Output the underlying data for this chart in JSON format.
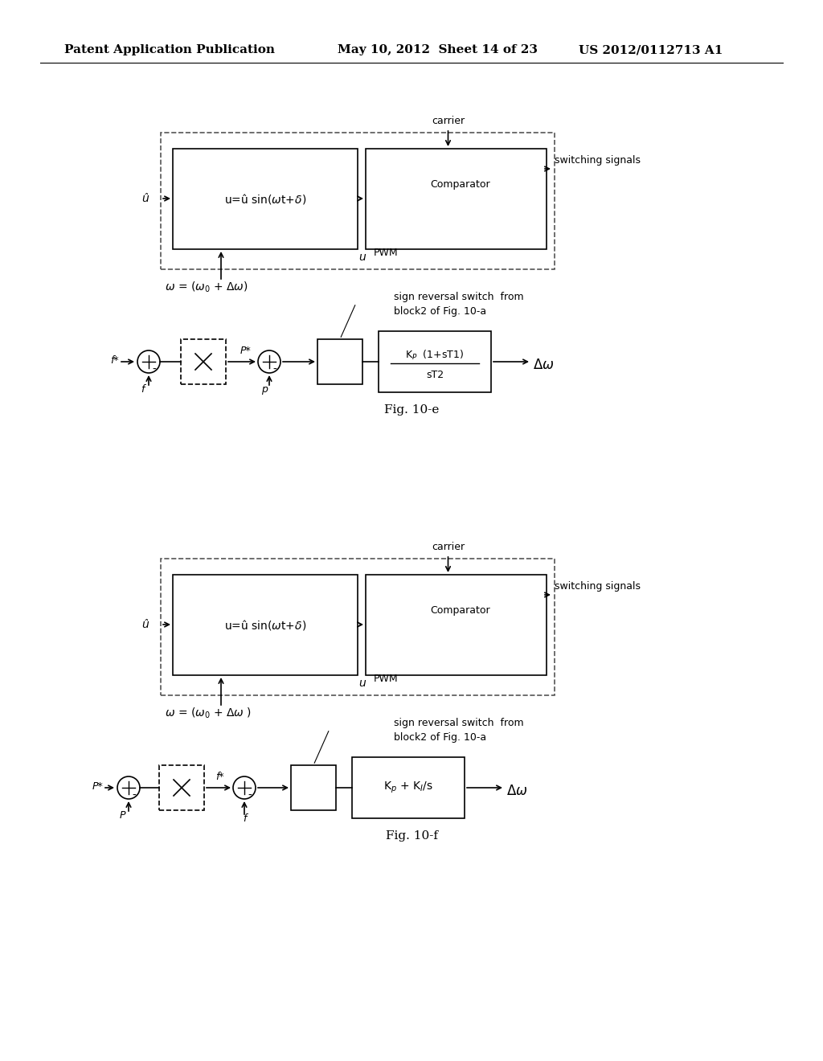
{
  "background_color": "#ffffff",
  "header_left": "Patent Application Publication",
  "header_mid": "May 10, 2012  Sheet 14 of 23",
  "header_right": "US 2012/0112713 A1",
  "fig_e_label": "Fig. 10-e",
  "fig_f_label": "Fig. 10-f",
  "line_color": "#000000",
  "box_color": "#000000",
  "dashed_color": "#555555"
}
